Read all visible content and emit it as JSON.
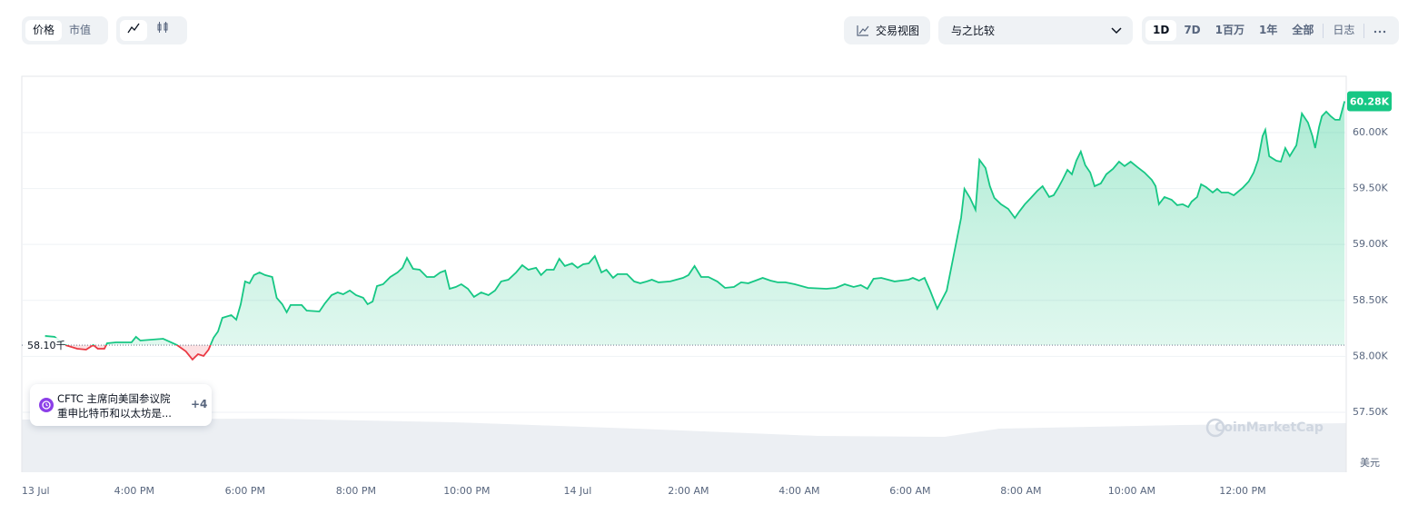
{
  "toolbar": {
    "metric_tabs": [
      "价格",
      "市值"
    ],
    "trading_view": "交易视图",
    "compare": "与之比较",
    "ranges": [
      "1D",
      "7D",
      "1百万",
      "1年",
      "全部"
    ],
    "log": "日志"
  },
  "news": {
    "lines": [
      "CFTC 主席向美国参议院",
      "重申比特币和以太坊是..."
    ],
    "more": "+4"
  },
  "watermark": "CoinMarketCap",
  "chart_data": {
    "type": "line",
    "ylabel": "美元",
    "color": "#16c784",
    "below_color": "#ea3943",
    "grid": true,
    "reference_line": {
      "value": 58100,
      "label": "58.10千"
    },
    "current_label": "60.28K",
    "xlim": [
      13.97,
      37.87
    ],
    "xticks": [
      {
        "value": 14,
        "label": "13 Jul"
      },
      {
        "value": 16,
        "label": "4:00 PM"
      },
      {
        "value": 18,
        "label": "6:00 PM"
      },
      {
        "value": 20,
        "label": "8:00 PM"
      },
      {
        "value": 22,
        "label": "10:00 PM"
      },
      {
        "value": 24,
        "label": "14 Jul"
      },
      {
        "value": 26,
        "label": "2:00 AM"
      },
      {
        "value": 28,
        "label": "4:00 AM"
      },
      {
        "value": 30,
        "label": "6:00 AM"
      },
      {
        "value": 32,
        "label": "8:00 AM"
      },
      {
        "value": 34,
        "label": "10:00 AM"
      },
      {
        "value": 36,
        "label": "12:00 PM"
      }
    ],
    "ylim": [
      56964,
      60503
    ],
    "yticks": [
      {
        "value": 57500,
        "label": "57.50K"
      },
      {
        "value": 58000,
        "label": "58.00K"
      },
      {
        "value": 58500,
        "label": "58.50K"
      },
      {
        "value": 59000,
        "label": "59.00K"
      },
      {
        "value": 59500,
        "label": "59.50K"
      },
      {
        "value": 60000,
        "label": "60.00K"
      }
    ],
    "x": [
      14.39,
      14.56,
      14.75,
      14.97,
      15.13,
      15.26,
      15.34,
      15.46,
      15.51,
      15.67,
      15.95,
      16.03,
      16.11,
      16.52,
      16.77,
      16.93,
      17.05,
      17.15,
      17.25,
      17.34,
      17.43,
      17.51,
      17.59,
      17.75,
      17.84,
      17.92,
      18.0,
      18.08,
      18.16,
      18.26,
      18.36,
      18.49,
      18.57,
      18.67,
      18.75,
      18.82,
      19.02,
      19.11,
      19.34,
      19.44,
      19.56,
      19.67,
      19.77,
      19.89,
      20.0,
      20.13,
      20.21,
      20.3,
      20.38,
      20.49,
      20.62,
      20.75,
      20.84,
      20.92,
      21.03,
      21.15,
      21.28,
      21.41,
      21.52,
      21.61,
      21.69,
      21.8,
      21.9,
      22.02,
      22.13,
      22.26,
      22.39,
      22.51,
      22.62,
      22.75,
      22.89,
      23.0,
      23.11,
      23.25,
      23.34,
      23.44,
      23.57,
      23.67,
      23.77,
      23.9,
      24.0,
      24.1,
      24.2,
      24.31,
      24.43,
      24.52,
      24.64,
      24.72,
      24.89,
      25.02,
      25.13,
      25.25,
      25.34,
      25.46,
      25.67,
      25.9,
      26.0,
      26.11,
      26.23,
      26.36,
      26.52,
      26.66,
      26.82,
      26.95,
      27.08,
      27.21,
      27.34,
      27.48,
      27.61,
      27.75,
      27.92,
      28.16,
      28.49,
      28.66,
      28.82,
      28.98,
      29.11,
      29.23,
      29.34,
      29.48,
      29.72,
      29.97,
      30.05,
      30.16,
      30.26,
      30.36,
      30.49,
      30.66,
      30.79,
      30.92,
      30.98,
      31.08,
      31.18,
      31.25,
      31.36,
      31.44,
      31.52,
      31.64,
      31.77,
      31.89,
      31.97,
      32.07,
      32.18,
      32.3,
      32.39,
      32.51,
      32.59,
      32.67,
      32.75,
      32.84,
      32.92,
      33.0,
      33.08,
      33.16,
      33.25,
      33.33,
      33.44,
      33.54,
      33.66,
      33.77,
      33.87,
      33.98,
      34.1,
      34.23,
      34.36,
      34.43,
      34.49,
      34.59,
      34.72,
      34.82,
      34.92,
      35.02,
      35.08,
      35.18,
      35.25,
      35.34,
      35.46,
      35.54,
      35.62,
      35.74,
      35.84,
      36.0,
      36.11,
      36.2,
      36.28,
      36.36,
      36.41,
      36.48,
      36.61,
      36.69,
      36.77,
      36.85,
      36.97,
      37.07,
      37.18,
      37.26,
      37.31,
      37.38,
      37.43,
      37.51,
      37.59,
      37.67,
      37.75,
      37.84
    ],
    "values": [
      58182,
      58174,
      58101,
      58068,
      58060,
      58101,
      58068,
      58068,
      58117,
      58125,
      58125,
      58174,
      58141,
      58157,
      58101,
      58044,
      57971,
      58019,
      58003,
      58060,
      58166,
      58222,
      58344,
      58368,
      58328,
      58466,
      58669,
      58653,
      58726,
      58750,
      58726,
      58709,
      58523,
      58466,
      58393,
      58458,
      58458,
      58409,
      58401,
      58474,
      58547,
      58571,
      58555,
      58588,
      58547,
      58523,
      58466,
      58490,
      58628,
      58644,
      58709,
      58750,
      58791,
      58880,
      58782,
      58774,
      58709,
      58709,
      58750,
      58766,
      58604,
      58620,
      58644,
      58604,
      58531,
      58571,
      58547,
      58588,
      58669,
      58685,
      58750,
      58815,
      58774,
      58791,
      58726,
      58774,
      58774,
      58872,
      58807,
      58831,
      58791,
      58823,
      58831,
      58896,
      58750,
      58774,
      58701,
      58734,
      58734,
      58669,
      58653,
      58669,
      58685,
      58661,
      58669,
      58701,
      58726,
      58807,
      58709,
      58709,
      58669,
      58612,
      58620,
      58661,
      58653,
      58677,
      58701,
      58677,
      58661,
      58661,
      58644,
      58612,
      58604,
      58612,
      58644,
      58620,
      58636,
      58604,
      58693,
      58701,
      58669,
      58685,
      58701,
      58677,
      58701,
      58588,
      58425,
      58588,
      58912,
      59237,
      59497,
      59416,
      59310,
      59756,
      59683,
      59521,
      59416,
      59359,
      59318,
      59237,
      59294,
      59359,
      59416,
      59481,
      59521,
      59424,
      59440,
      59505,
      59578,
      59667,
      59627,
      59748,
      59830,
      59708,
      59643,
      59521,
      59545,
      59627,
      59675,
      59740,
      59700,
      59740,
      59692,
      59643,
      59578,
      59521,
      59359,
      59424,
      59399,
      59351,
      59359,
      59334,
      59383,
      59424,
      59537,
      59513,
      59464,
      59497,
      59464,
      59464,
      59440,
      59505,
      59562,
      59643,
      59756,
      59968,
      60024,
      59789,
      59748,
      59740,
      59862,
      59789,
      59886,
      60170,
      60089,
      59968,
      59862,
      60049,
      60146,
      60187,
      60146,
      60114,
      60114,
      60280
    ]
  }
}
